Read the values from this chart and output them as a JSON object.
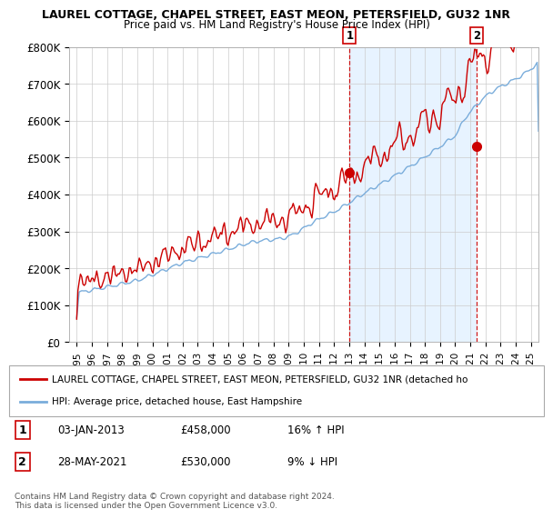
{
  "title": "LAUREL COTTAGE, CHAPEL STREET, EAST MEON, PETERSFIELD, GU32 1NR",
  "subtitle": "Price paid vs. HM Land Registry's House Price Index (HPI)",
  "ylabel_ticks": [
    "£0",
    "£100K",
    "£200K",
    "£300K",
    "£400K",
    "£500K",
    "£600K",
    "£700K",
    "£800K"
  ],
  "ylim": [
    0,
    800000
  ],
  "xlim_start": 1994.5,
  "xlim_end": 2025.5,
  "legend_property": "LAUREL COTTAGE, CHAPEL STREET, EAST MEON, PETERSFIELD, GU32 1NR (detached ho",
  "legend_hpi": "HPI: Average price, detached house, East Hampshire",
  "annotation1_label": "1",
  "annotation1_date": "03-JAN-2013",
  "annotation1_price": "£458,000",
  "annotation1_pct": "16% ↑ HPI",
  "annotation2_label": "2",
  "annotation2_date": "28-MAY-2021",
  "annotation2_price": "£530,000",
  "annotation2_pct": "9% ↓ HPI",
  "footnote": "Contains HM Land Registry data © Crown copyright and database right 2024.\nThis data is licensed under the Open Government Licence v3.0.",
  "property_color": "#cc0000",
  "hpi_color": "#7aaddb",
  "shade_color": "#ddeeff",
  "vline_color": "#cc0000",
  "marker1_x": 2013.02,
  "marker1_y": 458000,
  "marker2_x": 2021.42,
  "marker2_y": 530000,
  "background_color": "#ffffff",
  "grid_color": "#cccccc"
}
